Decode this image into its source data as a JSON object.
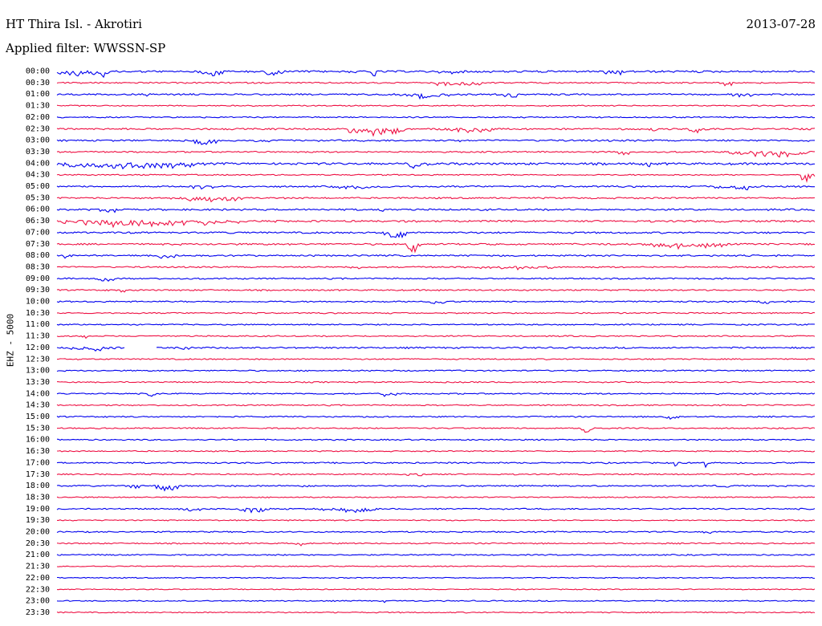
{
  "header": {
    "station": "HT Thira Isl. - Akrotiri",
    "date": "2013-07-28",
    "filter": "Applied filter: WWSSN-SP"
  },
  "chart_data": {
    "type": "line",
    "title": "HT Thira Isl. - Akrotiri",
    "ylabel": "EHZ - 5000",
    "trace_colors": [
      "#0000ee",
      "#ee1144"
    ],
    "rows": [
      {
        "time": "00:00",
        "activity": 0.9,
        "bursts": [
          [
            0.0,
            0.06,
            0.8
          ],
          [
            0.05,
            0.07,
            0.7
          ],
          [
            0.19,
            0.22,
            0.7
          ],
          [
            0.27,
            0.3,
            0.6
          ],
          [
            0.41,
            0.42,
            1.0
          ],
          [
            0.5,
            0.53,
            0.5
          ],
          [
            0.72,
            0.75,
            0.6
          ]
        ]
      },
      {
        "time": "00:30",
        "activity": 0.5,
        "bursts": [
          [
            0.49,
            0.55,
            0.5
          ],
          [
            0.55,
            0.56,
            0.5
          ],
          [
            0.88,
            0.89,
            0.8
          ]
        ]
      },
      {
        "time": "01:00",
        "activity": 0.6,
        "bursts": [
          [
            0.11,
            0.12,
            0.4
          ],
          [
            0.45,
            0.52,
            0.6
          ],
          [
            0.58,
            0.62,
            0.5
          ],
          [
            0.89,
            0.92,
            0.5
          ]
        ]
      },
      {
        "time": "01:30",
        "activity": 0.3,
        "bursts": []
      },
      {
        "time": "02:00",
        "activity": 0.4,
        "bursts": []
      },
      {
        "time": "02:30",
        "activity": 0.7,
        "bursts": [
          [
            0.38,
            0.46,
            0.9
          ],
          [
            0.5,
            0.58,
            0.6
          ],
          [
            0.78,
            0.79,
            0.5
          ],
          [
            0.83,
            0.85,
            0.6
          ]
        ]
      },
      {
        "time": "03:00",
        "activity": 0.7,
        "bursts": [
          [
            0.18,
            0.22,
            0.7
          ],
          [
            0.26,
            0.28,
            0.6
          ],
          [
            0.53,
            0.54,
            0.4
          ]
        ]
      },
      {
        "time": "03:30",
        "activity": 0.5,
        "bursts": [
          [
            0.74,
            0.76,
            0.5
          ],
          [
            0.88,
            0.99,
            0.7
          ]
        ]
      },
      {
        "time": "04:00",
        "activity": 1.0,
        "bursts": [
          [
            0.0,
            0.18,
            0.8
          ],
          [
            0.12,
            0.18,
            0.7
          ],
          [
            0.46,
            0.49,
            0.9
          ],
          [
            0.77,
            0.79,
            0.5
          ]
        ]
      },
      {
        "time": "04:30",
        "activity": 0.4,
        "bursts": [
          [
            0.98,
            1.0,
            1.0
          ]
        ]
      },
      {
        "time": "05:00",
        "activity": 0.6,
        "bursts": [
          [
            0.17,
            0.21,
            0.5
          ],
          [
            0.36,
            0.44,
            0.4
          ],
          [
            0.86,
            0.93,
            0.5
          ]
        ]
      },
      {
        "time": "05:30",
        "activity": 0.6,
        "bursts": [
          [
            0.15,
            0.25,
            0.6
          ]
        ]
      },
      {
        "time": "06:00",
        "activity": 0.7,
        "bursts": [
          [
            0.05,
            0.08,
            0.6
          ],
          [
            0.42,
            0.43,
            0.6
          ]
        ]
      },
      {
        "time": "06:30",
        "activity": 0.8,
        "bursts": [
          [
            0.0,
            0.24,
            0.7
          ],
          [
            0.07,
            0.08,
            0.9
          ]
        ]
      },
      {
        "time": "07:00",
        "activity": 0.7,
        "bursts": [
          [
            0.43,
            0.46,
            1.0
          ],
          [
            0.23,
            0.24,
            0.5
          ]
        ]
      },
      {
        "time": "07:30",
        "activity": 0.7,
        "bursts": [
          [
            0.46,
            0.48,
            0.9
          ],
          [
            0.77,
            0.89,
            0.6
          ]
        ]
      },
      {
        "time": "08:00",
        "activity": 0.6,
        "bursts": [
          [
            0.01,
            0.02,
            0.8
          ],
          [
            0.13,
            0.16,
            0.5
          ]
        ]
      },
      {
        "time": "08:30",
        "activity": 0.5,
        "bursts": [
          [
            0.38,
            0.4,
            0.4
          ],
          [
            0.55,
            0.66,
            0.4
          ]
        ]
      },
      {
        "time": "09:00",
        "activity": 0.5,
        "bursts": [
          [
            0.05,
            0.08,
            0.6
          ]
        ]
      },
      {
        "time": "09:30",
        "activity": 0.5,
        "bursts": [
          [
            0.08,
            0.09,
            0.4
          ]
        ]
      },
      {
        "time": "10:00",
        "activity": 0.5,
        "bursts": [
          [
            0.48,
            0.52,
            0.4
          ],
          [
            0.92,
            0.94,
            0.4
          ]
        ]
      },
      {
        "time": "10:30",
        "activity": 0.4,
        "bursts": []
      },
      {
        "time": "11:00",
        "activity": 0.4,
        "bursts": []
      },
      {
        "time": "11:30",
        "activity": 0.4,
        "bursts": [
          [
            0.03,
            0.04,
            0.5
          ]
        ]
      },
      {
        "time": "12:00",
        "activity": 0.6,
        "gap": [
          0.09,
          0.13
        ],
        "bursts": [
          [
            0.01,
            0.08,
            0.5
          ],
          [
            0.16,
            0.18,
            0.4
          ]
        ]
      },
      {
        "time": "12:30",
        "activity": 0.4,
        "bursts": []
      },
      {
        "time": "13:00",
        "activity": 0.4,
        "bursts": []
      },
      {
        "time": "13:30",
        "activity": 0.4,
        "bursts": []
      },
      {
        "time": "14:00",
        "activity": 0.4,
        "bursts": [
          [
            0.12,
            0.13,
            0.5
          ],
          [
            0.42,
            0.45,
            0.4
          ]
        ]
      },
      {
        "time": "14:30",
        "activity": 0.4,
        "bursts": []
      },
      {
        "time": "15:00",
        "activity": 0.4,
        "bursts": [
          [
            0.8,
            0.82,
            0.4
          ]
        ]
      },
      {
        "time": "15:30",
        "activity": 0.4,
        "bursts": [
          [
            0.69,
            0.71,
            0.6
          ]
        ]
      },
      {
        "time": "16:00",
        "activity": 0.4,
        "bursts": []
      },
      {
        "time": "16:30",
        "activity": 0.3,
        "bursts": []
      },
      {
        "time": "17:00",
        "activity": 0.5,
        "bursts": [
          [
            0.81,
            0.82,
            0.7
          ],
          [
            0.85,
            0.86,
            0.5
          ],
          [
            0.89,
            0.9,
            0.4
          ]
        ]
      },
      {
        "time": "17:30",
        "activity": 0.4,
        "bursts": [
          [
            0.46,
            0.49,
            0.4
          ]
        ]
      },
      {
        "time": "18:00",
        "activity": 0.5,
        "bursts": [
          [
            0.09,
            0.11,
            0.8
          ],
          [
            0.13,
            0.16,
            0.7
          ],
          [
            0.32,
            0.34,
            0.4
          ],
          [
            0.87,
            0.89,
            0.4
          ]
        ]
      },
      {
        "time": "18:30",
        "activity": 0.3,
        "bursts": []
      },
      {
        "time": "19:00",
        "activity": 0.5,
        "bursts": [
          [
            0.16,
            0.19,
            0.4
          ],
          [
            0.23,
            0.28,
            0.5
          ],
          [
            0.34,
            0.42,
            0.5
          ]
        ]
      },
      {
        "time": "19:30",
        "activity": 0.3,
        "bursts": []
      },
      {
        "time": "20:00",
        "activity": 0.4,
        "bursts": [
          [
            0.85,
            0.87,
            0.4
          ]
        ]
      },
      {
        "time": "20:30",
        "activity": 0.4,
        "bursts": [
          [
            0.31,
            0.33,
            0.4
          ]
        ]
      },
      {
        "time": "21:00",
        "activity": 0.4,
        "bursts": [
          [
            0.32,
            0.34,
            0.4
          ]
        ]
      },
      {
        "time": "21:30",
        "activity": 0.2,
        "bursts": []
      },
      {
        "time": "22:00",
        "activity": 0.2,
        "bursts": []
      },
      {
        "time": "22:30",
        "activity": 0.2,
        "bursts": []
      },
      {
        "time": "23:00",
        "activity": 0.3,
        "bursts": [
          [
            0.43,
            0.44,
            0.7
          ]
        ]
      },
      {
        "time": "23:30",
        "activity": 0.3,
        "bursts": [
          [
            0.36,
            0.37,
            0.4
          ]
        ]
      }
    ]
  }
}
